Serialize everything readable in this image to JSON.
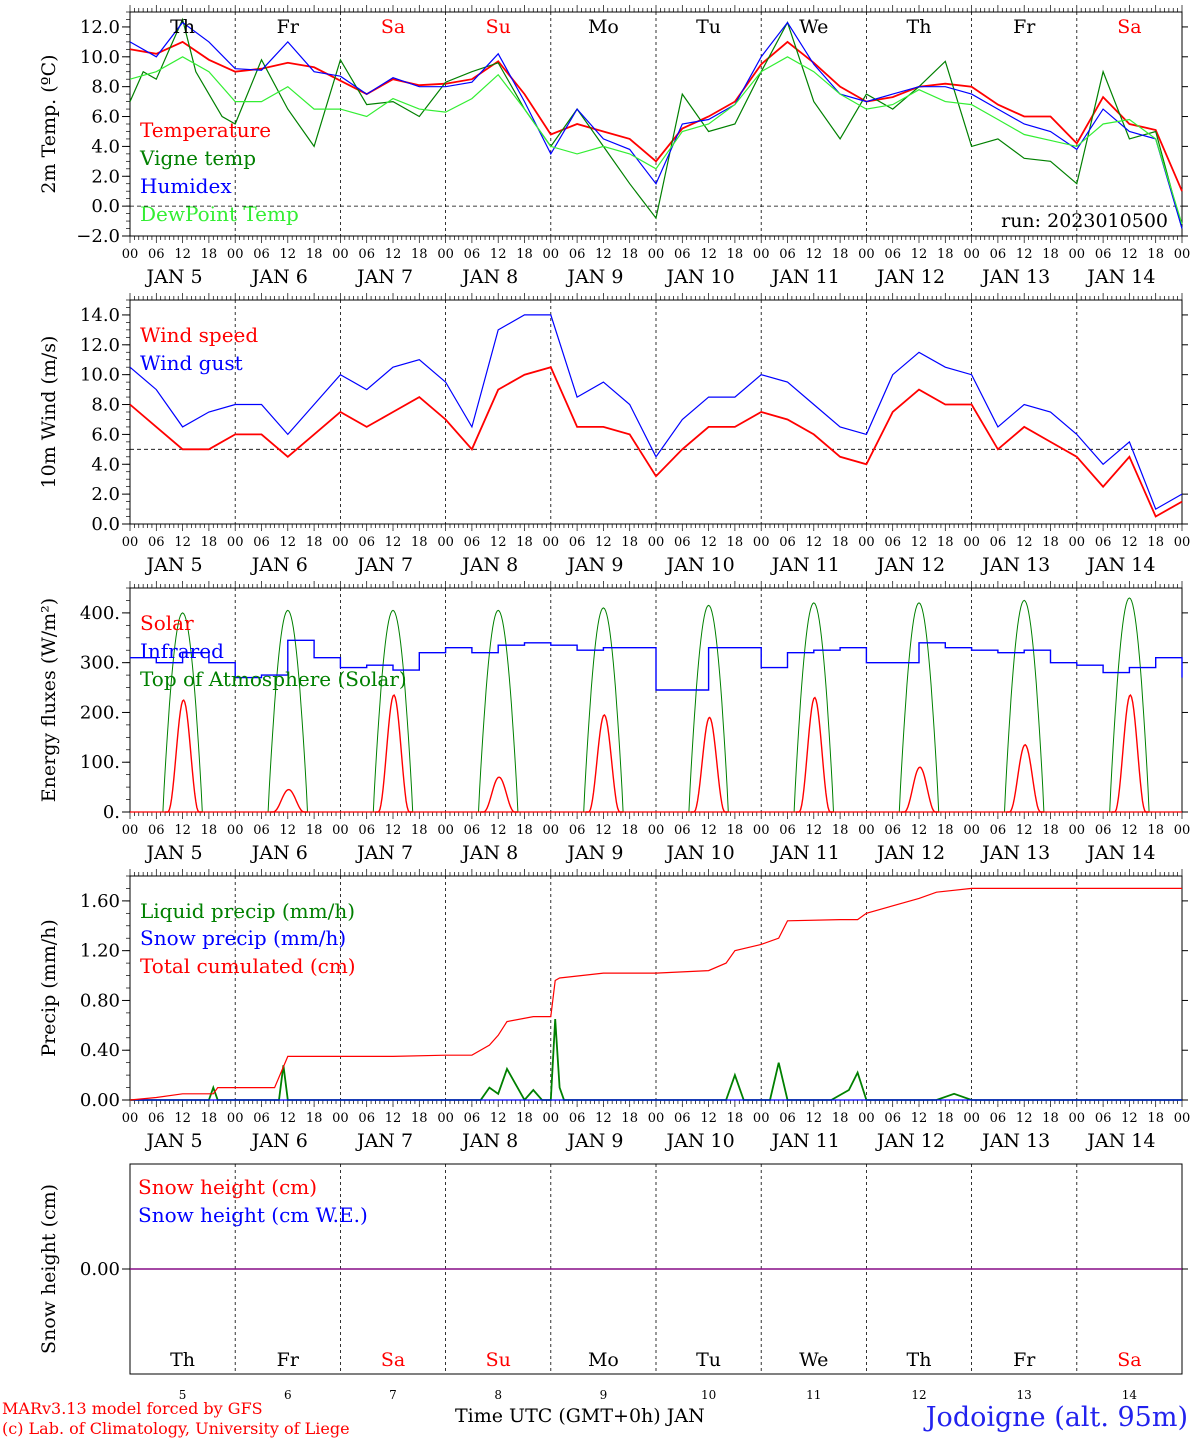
{
  "footer": {
    "credit_line1": "MARv3.13 model forced by GFS",
    "credit_line2": "(c) Lab. of Climatology, University of Liege",
    "xaxis_title": "Time UTC (GMT+0h) JAN",
    "station": "Jodoigne (alt. 95m)"
  },
  "days": {
    "weekday_labels": [
      "Th",
      "Fr",
      "Sa",
      "Su",
      "Mo",
      "Tu",
      "We",
      "Th",
      "Fr",
      "Sa"
    ],
    "weekend_flags": [
      false,
      false,
      true,
      true,
      false,
      false,
      false,
      false,
      false,
      true
    ],
    "date_labels": [
      "JAN 5",
      "JAN 6",
      "JAN 7",
      "JAN 8",
      "JAN 9",
      "JAN 10",
      "JAN 11",
      "JAN 12",
      "JAN 13",
      "JAN 14"
    ],
    "bottom_numbers": [
      "5",
      "6",
      "7",
      "8",
      "9",
      "10",
      "11",
      "12",
      "13",
      "14"
    ],
    "hour_ticks": [
      "00",
      "06",
      "12",
      "18"
    ],
    "final_tick": "00"
  },
  "colors": {
    "red": "#ff0000",
    "green": "#008000",
    "blue": "#0000ff",
    "light_green": "#33ee33",
    "purple": "#800080",
    "weekend": "#ff0000",
    "station": "#2222ee"
  },
  "chart_data": [
    {
      "type": "line",
      "ylabel": "2m Temp. (ºC)",
      "ylim": [
        -2,
        13
      ],
      "yticks": [
        "−2.0",
        "0.0",
        "2.0",
        "4.0",
        "6.0",
        "8.0",
        "10.0",
        "12.0"
      ],
      "reference_line": 0,
      "run_label": "run: 2023010500",
      "x_unit": "hours since JAN 5 00 UTC",
      "legend_placement": "left",
      "series": [
        {
          "name": "Temperature",
          "color": "red",
          "x": [
            0,
            6,
            12,
            18,
            24,
            30,
            36,
            42,
            48,
            54,
            60,
            66,
            72,
            78,
            84,
            90,
            96,
            102,
            108,
            114,
            120,
            126,
            132,
            138,
            144,
            150,
            156,
            162,
            168,
            174,
            180,
            186,
            192,
            198,
            204,
            210,
            216,
            222,
            228,
            234,
            240
          ],
          "y": [
            10.5,
            10.2,
            11.0,
            9.8,
            9.0,
            9.2,
            9.6,
            9.3,
            8.4,
            7.5,
            8.5,
            8.1,
            8.2,
            8.5,
            9.7,
            7.5,
            4.8,
            5.5,
            5.0,
            4.5,
            3.0,
            5.2,
            6.0,
            7.0,
            9.5,
            11.0,
            9.6,
            8.0,
            7.0,
            7.3,
            8.0,
            8.2,
            8.0,
            6.8,
            6.0,
            6.0,
            4.2,
            7.3,
            5.5,
            5.1,
            1.0
          ]
        },
        {
          "name": "Vigne temp",
          "color": "green",
          "x": [
            0,
            3,
            6,
            9,
            12,
            15,
            18,
            21,
            24,
            30,
            36,
            42,
            48,
            54,
            60,
            66,
            72,
            78,
            84,
            90,
            96,
            102,
            108,
            114,
            120,
            126,
            132,
            138,
            144,
            150,
            156,
            162,
            168,
            174,
            180,
            186,
            192,
            198,
            204,
            210,
            216,
            222,
            228,
            234,
            240
          ],
          "y": [
            7.0,
            9.0,
            8.5,
            10.5,
            12.5,
            9.0,
            7.5,
            6.0,
            5.5,
            9.8,
            6.5,
            4.0,
            9.8,
            6.8,
            7.0,
            6.0,
            8.3,
            9.0,
            9.6,
            6.5,
            4.0,
            6.5,
            4.0,
            1.5,
            -0.8,
            7.5,
            5.0,
            5.5,
            9.0,
            12.3,
            7.0,
            4.5,
            7.5,
            6.5,
            8.0,
            9.7,
            4.0,
            4.5,
            3.2,
            3.0,
            1.5,
            9.0,
            4.5,
            5.0,
            -1.5
          ]
        },
        {
          "name": "Humidex",
          "color": "blue",
          "x": [
            0,
            6,
            12,
            18,
            24,
            30,
            36,
            42,
            48,
            54,
            60,
            66,
            72,
            78,
            84,
            90,
            96,
            102,
            108,
            114,
            120,
            126,
            132,
            138,
            144,
            150,
            156,
            162,
            168,
            174,
            180,
            186,
            192,
            198,
            204,
            210,
            216,
            222,
            228,
            234,
            240
          ],
          "y": [
            11.0,
            10.0,
            12.3,
            11.0,
            9.2,
            9.1,
            11.0,
            9.0,
            8.7,
            7.5,
            8.6,
            8.0,
            8.0,
            8.3,
            10.2,
            7.0,
            3.5,
            6.5,
            4.5,
            3.8,
            1.5,
            5.5,
            5.8,
            6.8,
            10.0,
            12.3,
            9.5,
            7.5,
            7.0,
            7.5,
            8.0,
            8.0,
            7.5,
            6.5,
            5.5,
            5.0,
            3.8,
            6.5,
            5.0,
            4.5,
            -1.5
          ]
        },
        {
          "name": "DewPoint Temp",
          "color": "light_green",
          "x": [
            0,
            6,
            12,
            18,
            24,
            30,
            36,
            42,
            48,
            54,
            60,
            66,
            72,
            78,
            84,
            90,
            96,
            102,
            108,
            114,
            120,
            126,
            132,
            138,
            144,
            150,
            156,
            162,
            168,
            174,
            180,
            186,
            192,
            198,
            204,
            210,
            216,
            222,
            228,
            234,
            240
          ],
          "y": [
            8.5,
            9.0,
            10.0,
            9.0,
            7.0,
            7.0,
            8.0,
            6.5,
            6.5,
            6.0,
            7.2,
            6.5,
            6.3,
            7.2,
            8.8,
            6.5,
            4.0,
            3.5,
            4.0,
            3.5,
            2.5,
            5.0,
            5.5,
            6.8,
            9.0,
            10.0,
            9.0,
            7.5,
            6.5,
            6.8,
            7.8,
            7.0,
            6.8,
            5.8,
            4.8,
            4.4,
            4.0,
            5.5,
            5.8,
            4.5,
            -1.2
          ]
        }
      ]
    },
    {
      "type": "line",
      "ylabel": "10m Wind (m/s)",
      "ylim": [
        0,
        15
      ],
      "yticks": [
        "0.0",
        "2.0",
        "4.0",
        "6.0",
        "8.0",
        "10.0",
        "12.0",
        "14.0"
      ],
      "reference_line": 5,
      "x_unit": "hours since JAN 5 00 UTC",
      "legend_placement": "left",
      "series": [
        {
          "name": "Wind speed",
          "color": "red",
          "x": [
            0,
            6,
            12,
            18,
            24,
            30,
            36,
            42,
            48,
            54,
            60,
            66,
            72,
            78,
            84,
            90,
            96,
            102,
            108,
            114,
            120,
            126,
            132,
            138,
            144,
            150,
            156,
            162,
            168,
            174,
            180,
            186,
            192,
            198,
            204,
            210,
            216,
            222,
            228,
            234,
            240
          ],
          "y": [
            8.0,
            6.5,
            5.0,
            5.0,
            6.0,
            6.0,
            4.5,
            6.0,
            7.5,
            6.5,
            7.5,
            8.5,
            7.0,
            5.0,
            9.0,
            10.0,
            10.5,
            6.5,
            6.5,
            6.0,
            3.2,
            5.0,
            6.5,
            6.5,
            7.5,
            7.0,
            6.0,
            4.5,
            4.0,
            7.5,
            9.0,
            8.0,
            8.0,
            5.0,
            6.5,
            5.5,
            4.5,
            2.5,
            4.5,
            0.5,
            1.5
          ]
        },
        {
          "name": "Wind gust",
          "color": "blue",
          "x": [
            0,
            6,
            12,
            18,
            24,
            30,
            36,
            42,
            48,
            54,
            60,
            66,
            72,
            78,
            84,
            90,
            96,
            102,
            108,
            114,
            120,
            126,
            132,
            138,
            144,
            150,
            156,
            162,
            168,
            174,
            180,
            186,
            192,
            198,
            204,
            210,
            216,
            222,
            228,
            234,
            240
          ],
          "y": [
            10.5,
            9.0,
            6.5,
            7.5,
            8.0,
            8.0,
            6.0,
            8.0,
            10.0,
            9.0,
            10.5,
            11.0,
            9.5,
            6.5,
            13.0,
            14.0,
            14.0,
            8.5,
            9.5,
            8.0,
            4.5,
            7.0,
            8.5,
            8.5,
            10.0,
            9.5,
            8.0,
            6.5,
            6.0,
            10.0,
            11.5,
            10.5,
            10.0,
            6.5,
            8.0,
            7.5,
            6.0,
            4.0,
            5.5,
            1.0,
            2.0
          ]
        }
      ]
    },
    {
      "type": "line",
      "ylabel": "Energy fluxes (W/m²)",
      "ylim": [
        0,
        450
      ],
      "yticks": [
        "0.",
        "100.",
        "200.",
        "300.",
        "400."
      ],
      "x_unit": "hours since JAN 5 00 UTC",
      "legend_placement": "left",
      "series": [
        {
          "name": "Solar",
          "color": "red",
          "daily_peaks": [
            225,
            45,
            235,
            70,
            195,
            190,
            230,
            90,
            135,
            235
          ]
        },
        {
          "name": "Infrared",
          "color": "blue",
          "x": [
            0,
            6,
            12,
            18,
            24,
            30,
            36,
            42,
            48,
            54,
            60,
            66,
            72,
            78,
            84,
            90,
            96,
            102,
            108,
            114,
            120,
            126,
            132,
            138,
            144,
            150,
            156,
            162,
            168,
            174,
            180,
            186,
            192,
            198,
            204,
            210,
            216,
            222,
            228,
            234,
            240
          ],
          "y": [
            310,
            300,
            320,
            300,
            270,
            275,
            345,
            310,
            290,
            295,
            285,
            320,
            330,
            320,
            335,
            340,
            335,
            325,
            330,
            330,
            245,
            245,
            330,
            330,
            290,
            320,
            325,
            330,
            300,
            300,
            340,
            330,
            325,
            320,
            325,
            300,
            295,
            280,
            290,
            310,
            270
          ]
        },
        {
          "name": "Top of Atmosphere (Solar)",
          "color": "green",
          "daily_peaks": [
            400,
            405,
            405,
            405,
            410,
            415,
            420,
            420,
            425,
            430
          ]
        }
      ]
    },
    {
      "type": "line",
      "ylabel": "Precip (mm/h)",
      "ylim": [
        0,
        1.8
      ],
      "yticks": [
        "0.00",
        "0.40",
        "0.80",
        "1.20",
        "1.60"
      ],
      "x_unit": "hours since JAN 5 00 UTC",
      "legend_placement": "left",
      "series": [
        {
          "name": "Liquid precip (mm/h)",
          "color": "green",
          "x": [
            0,
            14,
            18,
            19,
            20,
            30,
            34,
            35,
            36,
            76,
            80,
            82,
            84,
            86,
            90,
            92,
            94,
            96,
            97,
            98,
            99,
            100,
            102,
            126,
            136,
            138,
            140,
            146,
            148,
            150,
            152,
            160,
            164,
            166,
            168,
            170,
            184,
            188,
            192,
            240
          ],
          "y": [
            0,
            0,
            0,
            0.1,
            0,
            0,
            0,
            0.28,
            0,
            0,
            0,
            0.1,
            0.05,
            0.25,
            0,
            0.08,
            0,
            0,
            0.65,
            0.1,
            0,
            0,
            0,
            0,
            0,
            0.2,
            0,
            0,
            0.3,
            0,
            0,
            0,
            0.08,
            0.22,
            0,
            0,
            0,
            0.05,
            0,
            0
          ]
        },
        {
          "name": "Snow precip (mm/h)",
          "color": "blue",
          "x": [
            0,
            240
          ],
          "y": [
            0,
            0
          ]
        },
        {
          "name": "Total cumulated (cm)",
          "color": "red",
          "x": [
            0,
            6,
            12,
            19,
            20,
            33,
            36,
            48,
            60,
            72,
            78,
            82,
            84,
            86,
            92,
            96,
            97,
            98,
            108,
            120,
            132,
            136,
            138,
            144,
            148,
            150,
            162,
            166,
            168,
            180,
            184,
            192,
            240
          ],
          "y": [
            0,
            0.02,
            0.05,
            0.05,
            0.1,
            0.1,
            0.35,
            0.35,
            0.35,
            0.36,
            0.36,
            0.44,
            0.52,
            0.63,
            0.67,
            0.67,
            0.96,
            0.98,
            1.02,
            1.02,
            1.04,
            1.1,
            1.2,
            1.25,
            1.3,
            1.44,
            1.45,
            1.45,
            1.5,
            1.62,
            1.67,
            1.7,
            1.7
          ]
        }
      ]
    },
    {
      "type": "line",
      "ylabel": "Snow height (cm)",
      "ylim": [
        -1,
        1
      ],
      "yticks": [
        "0.00"
      ],
      "x_unit": "hours since JAN 5 00 UTC",
      "legend_placement": "left",
      "series": [
        {
          "name": "Snow height (cm)",
          "color": "red",
          "x": [
            0,
            240
          ],
          "y": [
            0,
            0
          ]
        },
        {
          "name": "Snow height (cm W.E.)",
          "color": "blue",
          "x": [
            0,
            240
          ],
          "y": [
            0,
            0
          ]
        }
      ]
    }
  ]
}
